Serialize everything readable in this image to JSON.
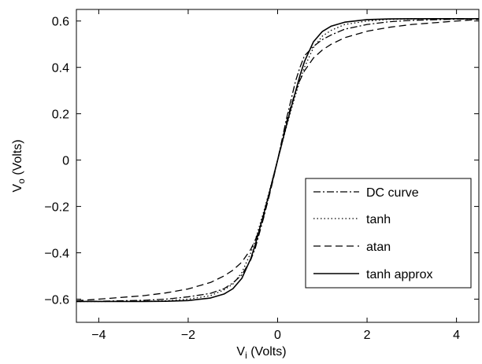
{
  "chart_data": {
    "type": "line",
    "xlabel": {
      "base": "V",
      "sub": "i",
      "rest": " (Volts)"
    },
    "ylabel": {
      "base": "V",
      "sub": "o",
      "rest": " (Volts)"
    },
    "xlim": [
      -4.5,
      4.5
    ],
    "ylim": [
      -0.7,
      0.65
    ],
    "xticks": [
      -4,
      -2,
      0,
      2,
      4
    ],
    "yticks": [
      -0.6,
      -0.4,
      -0.2,
      0,
      0.2,
      0.4,
      0.6
    ],
    "xtick_labels": [
      "−4",
      "−2",
      "0",
      "2",
      "4"
    ],
    "ytick_labels": [
      "−0.6",
      "−0.4",
      "−0.2",
      "0",
      "0.2",
      "0.4",
      "0.6"
    ],
    "grid": false,
    "legend_position": "lower-right",
    "series": [
      {
        "name": "DC curve",
        "style": "dashdot",
        "x": [
          -4.5,
          -4,
          -3,
          -2.5,
          -2,
          -1.5,
          -1.2,
          -1,
          -0.8,
          -0.6,
          -0.5,
          -0.4,
          -0.3,
          -0.2,
          -0.1,
          0,
          0.1,
          0.2,
          0.3,
          0.4,
          0.5,
          0.6,
          0.8,
          1,
          1.2,
          1.5,
          2,
          2.5,
          3,
          4,
          4.5
        ],
        "y": [
          -0.61,
          -0.609,
          -0.605,
          -0.6,
          -0.59,
          -0.575,
          -0.555,
          -0.53,
          -0.495,
          -0.43,
          -0.38,
          -0.31,
          -0.24,
          -0.16,
          -0.08,
          0,
          0.09,
          0.18,
          0.26,
          0.34,
          0.4,
          0.45,
          0.49,
          0.52,
          0.54,
          0.565,
          0.585,
          0.597,
          0.603,
          0.608,
          0.61
        ]
      },
      {
        "name": "tanh",
        "style": "dotted",
        "x": [
          -4.5,
          -4,
          -3,
          -2.5,
          -2,
          -1.5,
          -1.2,
          -1,
          -0.8,
          -0.6,
          -0.5,
          -0.4,
          -0.3,
          -0.2,
          -0.1,
          0,
          0.1,
          0.2,
          0.3,
          0.4,
          0.5,
          0.6,
          0.8,
          1,
          1.2,
          1.5,
          2,
          2.5,
          3,
          4,
          4.5
        ],
        "y": [
          -0.61,
          -0.61,
          -0.609,
          -0.607,
          -0.6,
          -0.585,
          -0.56,
          -0.535,
          -0.485,
          -0.4,
          -0.345,
          -0.28,
          -0.215,
          -0.145,
          -0.072,
          0,
          0.072,
          0.145,
          0.215,
          0.28,
          0.345,
          0.4,
          0.485,
          0.535,
          0.56,
          0.585,
          0.6,
          0.607,
          0.609,
          0.61,
          0.61
        ]
      },
      {
        "name": "atan",
        "style": "dashed",
        "x": [
          -4.5,
          -4,
          -3,
          -2.5,
          -2,
          -1.5,
          -1.2,
          -1,
          -0.8,
          -0.6,
          -0.5,
          -0.4,
          -0.3,
          -0.2,
          -0.1,
          0,
          0.1,
          0.2,
          0.3,
          0.4,
          0.5,
          0.6,
          0.8,
          1,
          1.2,
          1.5,
          2,
          2.5,
          3,
          4,
          4.5
        ],
        "y": [
          -0.607,
          -0.6,
          -0.585,
          -0.573,
          -0.556,
          -0.528,
          -0.5,
          -0.475,
          -0.44,
          -0.385,
          -0.345,
          -0.295,
          -0.235,
          -0.165,
          -0.085,
          0,
          0.085,
          0.165,
          0.235,
          0.295,
          0.345,
          0.385,
          0.44,
          0.475,
          0.5,
          0.528,
          0.556,
          0.573,
          0.585,
          0.6,
          0.607
        ]
      },
      {
        "name": "tanh approx",
        "style": "solid",
        "x": [
          -4.5,
          -4,
          -3,
          -2.5,
          -2,
          -1.5,
          -1.2,
          -1,
          -0.8,
          -0.6,
          -0.5,
          -0.4,
          -0.3,
          -0.2,
          -0.1,
          0,
          0.1,
          0.2,
          0.3,
          0.4,
          0.5,
          0.6,
          0.8,
          1,
          1.2,
          1.5,
          2,
          2.5,
          3,
          4,
          4.5
        ],
        "y": [
          -0.61,
          -0.61,
          -0.61,
          -0.609,
          -0.606,
          -0.595,
          -0.578,
          -0.555,
          -0.51,
          -0.425,
          -0.365,
          -0.295,
          -0.225,
          -0.152,
          -0.076,
          0,
          0.076,
          0.152,
          0.225,
          0.295,
          0.365,
          0.425,
          0.51,
          0.555,
          0.578,
          0.595,
          0.606,
          0.609,
          0.61,
          0.61,
          0.61
        ]
      }
    ]
  }
}
